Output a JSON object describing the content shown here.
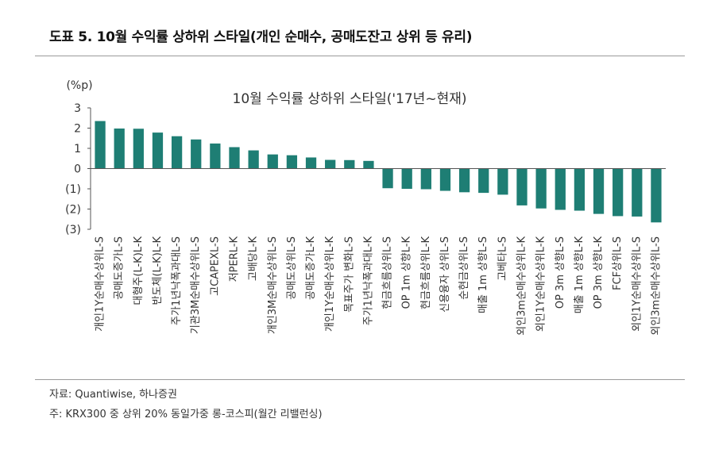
{
  "figure_title": "도표 5. 10월 수익률 상하위 스타일(개인 순매수, 공매도잔고 상위 등 유리)",
  "source_note": "자료: Quantiwise, 하나증권",
  "footnote": "주: KRX300 중 상위 20% 동일가중 롱-코스피(월간 리밸런싱)",
  "colors": {
    "bar": "#1e7e74",
    "axis": "#555555",
    "rule": "#9a9a9a"
  },
  "chart_data": {
    "type": "bar",
    "title": "10월 수익률 상하위 스타일('17년~현재)",
    "ylabel": "(%p)",
    "ylim": [
      -3,
      3
    ],
    "yticks": [
      3,
      2,
      1,
      0,
      -1,
      -2,
      -3
    ],
    "ytick_labels": [
      "3",
      "2",
      "1",
      "0",
      "(1)",
      "(2)",
      "(3)"
    ],
    "grid": false,
    "categories": [
      "개인1Y순매수상위L-S",
      "공매도증가L-S",
      "대형주(L-K)L-K",
      "반도체(L-K)L-K",
      "주가1년낙폭과대L-S",
      "기관3M순매수상위L-S",
      "고CAPEXL-S",
      "저PERL-K",
      "고배당L-K",
      "개인3M순매수상위L-S",
      "공매도상위L-S",
      "공매도증가L-K",
      "개인1Y순매수상위L-K",
      "목표주가 변화L-S",
      "주가1년낙폭과대L-K",
      "현금흐름상위L-S",
      "OP 1m 상향L-K",
      "현금흐름상위L-K",
      "신용융자 상위L-S",
      "순현금상위L-S",
      "매출 1m 상향L-S",
      "고베타L-S",
      "외인3m순매수상위L-K",
      "외인1Y순매수상위L-K",
      "OP 3m 상향L-S",
      "매출 1m 상향L-K",
      "OP 3m 상향L-K",
      "FCF상위L-S",
      "외인1Y순매수상위L-S",
      "외인3m순매수상위L-S"
    ],
    "values": [
      2.35,
      1.98,
      1.97,
      1.78,
      1.6,
      1.44,
      1.24,
      1.06,
      0.9,
      0.7,
      0.66,
      0.55,
      0.43,
      0.42,
      0.38,
      -0.97,
      -1.0,
      -1.02,
      -1.1,
      -1.17,
      -1.2,
      -1.29,
      -1.82,
      -1.97,
      -2.04,
      -2.08,
      -2.24,
      -2.35,
      -2.37,
      -2.66
    ]
  }
}
